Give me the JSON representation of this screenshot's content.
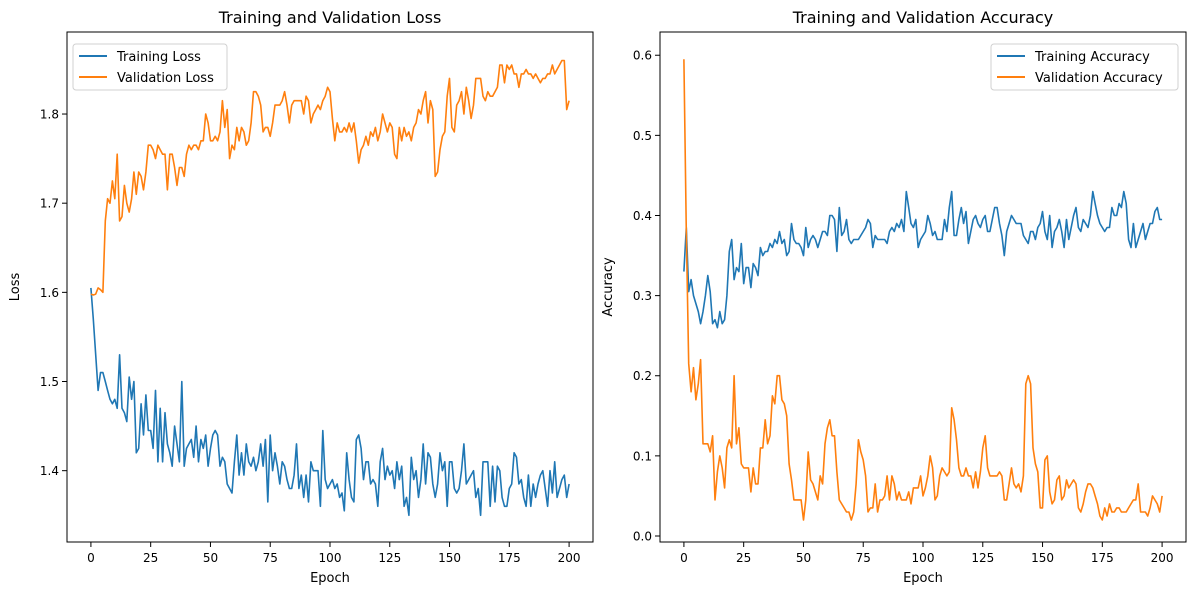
{
  "chart_data": [
    {
      "type": "line",
      "title": "Training and Validation Loss",
      "xlabel": "Epoch",
      "ylabel": "Loss",
      "xlim": [
        -10,
        210
      ],
      "ylim": [
        1.32,
        1.892
      ],
      "xticks": [
        0,
        25,
        50,
        75,
        100,
        125,
        150,
        175,
        200
      ],
      "yticks": [
        1.4,
        1.5,
        1.6,
        1.7,
        1.8
      ],
      "grid": false,
      "legend_placement": "upper-left",
      "series": [
        {
          "name": "Training Loss",
          "color": "#1f77b4",
          "values": [
            1.605,
            1.57,
            1.53,
            1.49,
            1.51,
            1.51,
            1.5,
            1.49,
            1.48,
            1.475,
            1.48,
            1.47,
            1.53,
            1.47,
            1.465,
            1.455,
            1.505,
            1.48,
            1.5,
            1.42,
            1.425,
            1.475,
            1.44,
            1.485,
            1.445,
            1.445,
            1.425,
            1.49,
            1.41,
            1.47,
            1.41,
            1.465,
            1.43,
            1.42,
            1.405,
            1.45,
            1.43,
            1.41,
            1.5,
            1.405,
            1.425,
            1.43,
            1.435,
            1.415,
            1.45,
            1.41,
            1.435,
            1.425,
            1.44,
            1.405,
            1.425,
            1.44,
            1.445,
            1.44,
            1.405,
            1.415,
            1.41,
            1.385,
            1.38,
            1.375,
            1.41,
            1.44,
            1.395,
            1.42,
            1.395,
            1.43,
            1.41,
            1.405,
            1.415,
            1.4,
            1.41,
            1.43,
            1.405,
            1.435,
            1.365,
            1.44,
            1.4,
            1.42,
            1.405,
            1.385,
            1.41,
            1.405,
            1.39,
            1.38,
            1.38,
            1.395,
            1.43,
            1.38,
            1.395,
            1.37,
            1.395,
            1.365,
            1.41,
            1.4,
            1.4,
            1.4,
            1.36,
            1.445,
            1.39,
            1.38,
            1.385,
            1.39,
            1.38,
            1.385,
            1.37,
            1.375,
            1.355,
            1.42,
            1.39,
            1.37,
            1.365,
            1.435,
            1.44,
            1.425,
            1.39,
            1.41,
            1.41,
            1.385,
            1.39,
            1.385,
            1.36,
            1.41,
            1.425,
            1.39,
            1.405,
            1.395,
            1.4,
            1.38,
            1.41,
            1.39,
            1.405,
            1.36,
            1.37,
            1.35,
            1.415,
            1.39,
            1.4,
            1.37,
            1.39,
            1.43,
            1.385,
            1.42,
            1.415,
            1.385,
            1.37,
            1.385,
            1.42,
            1.4,
            1.41,
            1.36,
            1.41,
            1.41,
            1.38,
            1.375,
            1.38,
            1.4,
            1.43,
            1.385,
            1.39,
            1.395,
            1.4,
            1.37,
            1.38,
            1.35,
            1.41,
            1.41,
            1.41,
            1.36,
            1.405,
            1.365,
            1.405,
            1.4,
            1.37,
            1.36,
            1.36,
            1.38,
            1.385,
            1.42,
            1.415,
            1.385,
            1.39,
            1.37,
            1.36,
            1.395,
            1.36,
            1.385,
            1.37,
            1.385,
            1.395,
            1.4,
            1.38,
            1.36,
            1.4,
            1.375,
            1.41,
            1.37,
            1.38,
            1.39,
            1.395,
            1.37,
            1.385
          ]
        },
        {
          "name": "Validation Loss",
          "color": "#ff7f0e",
          "values": [
            1.598,
            1.597,
            1.598,
            1.605,
            1.603,
            1.6,
            1.68,
            1.705,
            1.7,
            1.725,
            1.705,
            1.755,
            1.68,
            1.685,
            1.72,
            1.7,
            1.69,
            1.705,
            1.735,
            1.71,
            1.735,
            1.73,
            1.715,
            1.735,
            1.765,
            1.765,
            1.76,
            1.75,
            1.765,
            1.76,
            1.755,
            1.755,
            1.715,
            1.755,
            1.755,
            1.74,
            1.72,
            1.74,
            1.74,
            1.73,
            1.755,
            1.765,
            1.76,
            1.765,
            1.765,
            1.76,
            1.77,
            1.77,
            1.8,
            1.79,
            1.77,
            1.77,
            1.775,
            1.77,
            1.78,
            1.815,
            1.785,
            1.805,
            1.75,
            1.765,
            1.76,
            1.785,
            1.77,
            1.785,
            1.78,
            1.765,
            1.77,
            1.79,
            1.825,
            1.825,
            1.82,
            1.81,
            1.78,
            1.785,
            1.785,
            1.775,
            1.79,
            1.81,
            1.81,
            1.81,
            1.815,
            1.825,
            1.81,
            1.79,
            1.81,
            1.815,
            1.815,
            1.815,
            1.815,
            1.8,
            1.82,
            1.815,
            1.79,
            1.8,
            1.805,
            1.81,
            1.805,
            1.815,
            1.82,
            1.83,
            1.825,
            1.795,
            1.77,
            1.79,
            1.78,
            1.78,
            1.785,
            1.78,
            1.79,
            1.78,
            1.79,
            1.77,
            1.745,
            1.76,
            1.765,
            1.775,
            1.765,
            1.78,
            1.775,
            1.785,
            1.77,
            1.78,
            1.8,
            1.79,
            1.78,
            1.79,
            1.785,
            1.755,
            1.75,
            1.785,
            1.77,
            1.785,
            1.775,
            1.78,
            1.77,
            1.785,
            1.79,
            1.805,
            1.8,
            1.815,
            1.825,
            1.79,
            1.815,
            1.805,
            1.73,
            1.735,
            1.76,
            1.775,
            1.78,
            1.82,
            1.84,
            1.785,
            1.78,
            1.81,
            1.815,
            1.825,
            1.8,
            1.83,
            1.815,
            1.795,
            1.81,
            1.84,
            1.84,
            1.84,
            1.82,
            1.815,
            1.825,
            1.82,
            1.82,
            1.825,
            1.83,
            1.855,
            1.855,
            1.835,
            1.855,
            1.85,
            1.855,
            1.845,
            1.845,
            1.83,
            1.845,
            1.845,
            1.85,
            1.845,
            1.845,
            1.84,
            1.845,
            1.84,
            1.835,
            1.84,
            1.84,
            1.845,
            1.845,
            1.855,
            1.845,
            1.85,
            1.855,
            1.86,
            1.86,
            1.805,
            1.815
          ]
        }
      ]
    },
    {
      "type": "line",
      "title": "Training and Validation Accuracy",
      "xlabel": "Epoch",
      "ylabel": "Accuracy",
      "xlim": [
        -10,
        210
      ],
      "ylim": [
        -0.0075,
        0.629
      ],
      "xticks": [
        0,
        25,
        50,
        75,
        100,
        125,
        150,
        175,
        200
      ],
      "yticks": [
        0.0,
        0.1,
        0.2,
        0.3,
        0.4,
        0.5,
        0.6
      ],
      "grid": false,
      "legend_placement": "upper-right",
      "series": [
        {
          "name": "Training Accuracy",
          "color": "#1f77b4",
          "values": [
            0.33,
            0.385,
            0.305,
            0.32,
            0.3,
            0.29,
            0.28,
            0.265,
            0.28,
            0.3,
            0.325,
            0.305,
            0.265,
            0.27,
            0.26,
            0.28,
            0.265,
            0.27,
            0.3,
            0.355,
            0.37,
            0.32,
            0.335,
            0.33,
            0.365,
            0.315,
            0.335,
            0.335,
            0.31,
            0.34,
            0.335,
            0.325,
            0.36,
            0.35,
            0.355,
            0.355,
            0.365,
            0.36,
            0.37,
            0.365,
            0.38,
            0.365,
            0.37,
            0.35,
            0.355,
            0.39,
            0.37,
            0.365,
            0.365,
            0.36,
            0.35,
            0.385,
            0.36,
            0.37,
            0.375,
            0.37,
            0.36,
            0.37,
            0.38,
            0.38,
            0.375,
            0.4,
            0.4,
            0.395,
            0.355,
            0.41,
            0.375,
            0.38,
            0.395,
            0.37,
            0.365,
            0.37,
            0.37,
            0.37,
            0.375,
            0.38,
            0.385,
            0.395,
            0.39,
            0.36,
            0.375,
            0.37,
            0.37,
            0.37,
            0.37,
            0.365,
            0.38,
            0.385,
            0.38,
            0.39,
            0.385,
            0.395,
            0.38,
            0.43,
            0.41,
            0.39,
            0.385,
            0.395,
            0.36,
            0.37,
            0.375,
            0.38,
            0.4,
            0.39,
            0.375,
            0.38,
            0.37,
            0.37,
            0.37,
            0.395,
            0.38,
            0.41,
            0.43,
            0.375,
            0.375,
            0.395,
            0.41,
            0.39,
            0.405,
            0.365,
            0.38,
            0.395,
            0.4,
            0.39,
            0.385,
            0.395,
            0.4,
            0.38,
            0.38,
            0.395,
            0.41,
            0.41,
            0.39,
            0.375,
            0.35,
            0.38,
            0.39,
            0.4,
            0.395,
            0.39,
            0.39,
            0.39,
            0.375,
            0.37,
            0.365,
            0.38,
            0.38,
            0.37,
            0.385,
            0.39,
            0.405,
            0.38,
            0.37,
            0.4,
            0.36,
            0.38,
            0.385,
            0.395,
            0.38,
            0.36,
            0.395,
            0.37,
            0.385,
            0.4,
            0.41,
            0.385,
            0.38,
            0.395,
            0.39,
            0.385,
            0.4,
            0.43,
            0.415,
            0.4,
            0.39,
            0.385,
            0.38,
            0.385,
            0.385,
            0.41,
            0.4,
            0.4,
            0.415,
            0.41,
            0.43,
            0.415,
            0.37,
            0.36,
            0.39,
            0.36,
            0.37,
            0.38,
            0.39,
            0.37,
            0.38,
            0.39,
            0.39,
            0.405,
            0.41,
            0.395,
            0.395
          ]
        },
        {
          "name": "Validation Accuracy",
          "color": "#ff7f0e",
          "values": [
            0.595,
            0.38,
            0.215,
            0.18,
            0.21,
            0.17,
            0.19,
            0.22,
            0.115,
            0.115,
            0.115,
            0.105,
            0.125,
            0.045,
            0.08,
            0.1,
            0.085,
            0.06,
            0.11,
            0.12,
            0.11,
            0.2,
            0.115,
            0.135,
            0.09,
            0.085,
            0.085,
            0.085,
            0.055,
            0.085,
            0.065,
            0.065,
            0.11,
            0.11,
            0.145,
            0.115,
            0.125,
            0.175,
            0.165,
            0.2,
            0.2,
            0.17,
            0.165,
            0.15,
            0.09,
            0.07,
            0.045,
            0.045,
            0.045,
            0.045,
            0.02,
            0.045,
            0.105,
            0.07,
            0.065,
            0.055,
            0.045,
            0.075,
            0.065,
            0.115,
            0.135,
            0.145,
            0.125,
            0.125,
            0.08,
            0.045,
            0.04,
            0.035,
            0.03,
            0.03,
            0.02,
            0.03,
            0.065,
            0.12,
            0.105,
            0.095,
            0.075,
            0.03,
            0.035,
            0.035,
            0.065,
            0.03,
            0.045,
            0.045,
            0.05,
            0.075,
            0.045,
            0.075,
            0.065,
            0.045,
            0.055,
            0.045,
            0.045,
            0.045,
            0.055,
            0.04,
            0.06,
            0.06,
            0.06,
            0.075,
            0.05,
            0.06,
            0.075,
            0.1,
            0.085,
            0.045,
            0.05,
            0.075,
            0.085,
            0.08,
            0.075,
            0.08,
            0.16,
            0.145,
            0.12,
            0.085,
            0.075,
            0.075,
            0.085,
            0.075,
            0.075,
            0.06,
            0.08,
            0.06,
            0.08,
            0.11,
            0.125,
            0.085,
            0.075,
            0.075,
            0.075,
            0.075,
            0.08,
            0.075,
            0.045,
            0.045,
            0.065,
            0.085,
            0.065,
            0.06,
            0.065,
            0.055,
            0.075,
            0.19,
            0.2,
            0.19,
            0.11,
            0.09,
            0.08,
            0.035,
            0.035,
            0.095,
            0.1,
            0.055,
            0.04,
            0.045,
            0.07,
            0.075,
            0.045,
            0.05,
            0.07,
            0.06,
            0.065,
            0.07,
            0.065,
            0.035,
            0.03,
            0.04,
            0.055,
            0.065,
            0.065,
            0.06,
            0.05,
            0.04,
            0.025,
            0.02,
            0.035,
            0.025,
            0.04,
            0.03,
            0.03,
            0.035,
            0.035,
            0.03,
            0.03,
            0.03,
            0.035,
            0.04,
            0.045,
            0.045,
            0.065,
            0.03,
            0.03,
            0.03,
            0.025,
            0.035,
            0.05,
            0.045,
            0.04,
            0.03,
            0.05
          ]
        }
      ]
    }
  ]
}
